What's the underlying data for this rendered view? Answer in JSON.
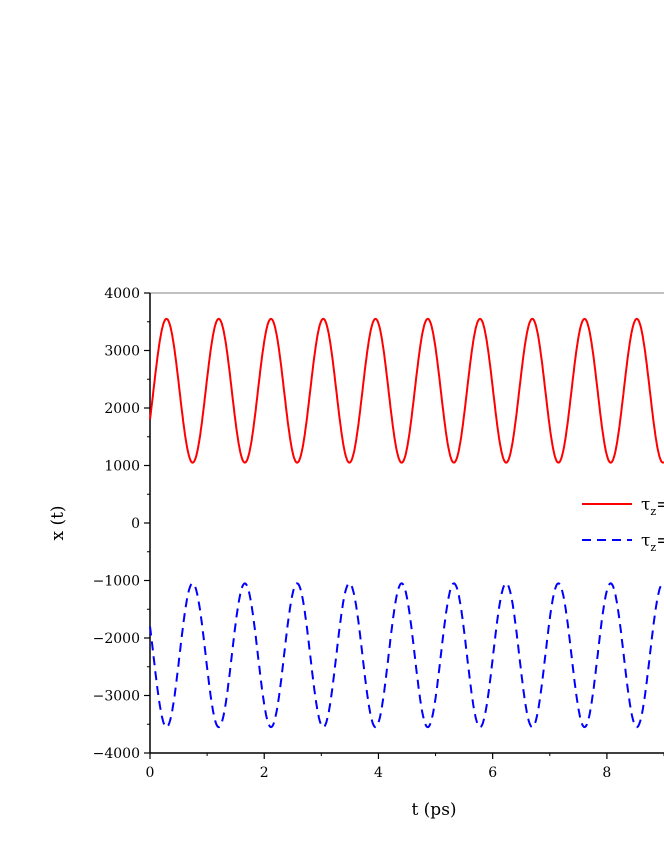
{
  "chart_data": {
    "type": "line",
    "xlabel": "t (ps)",
    "ylabel": "x (t)",
    "xlim": [
      0,
      9.0
    ],
    "ylim": [
      -4000,
      4000
    ],
    "x_ticks": [
      0,
      2,
      4,
      6,
      8
    ],
    "y_ticks": [
      -4000,
      -3000,
      -2000,
      -1000,
      0,
      1000,
      2000,
      3000,
      4000
    ],
    "grid": false,
    "legend_placement": "right",
    "series": [
      {
        "legend_symbol": "τ",
        "legend_subscript": "z",
        "legend_suffix": "=",
        "color": "#ff0000",
        "dash": "solid",
        "offset": 2300,
        "amplitude": 1250,
        "period": 0.915,
        "phase_start": 1800,
        "t_start": 0,
        "t_end": 9.0
      },
      {
        "legend_symbol": "τ",
        "legend_subscript": "z",
        "legend_suffix": "=",
        "color": "#0000ff",
        "dash": "dashed",
        "offset": -2300,
        "amplitude": 1250,
        "period": 0.915,
        "phase_start": -1800,
        "t_start": 0,
        "t_end": 9.0
      }
    ]
  }
}
